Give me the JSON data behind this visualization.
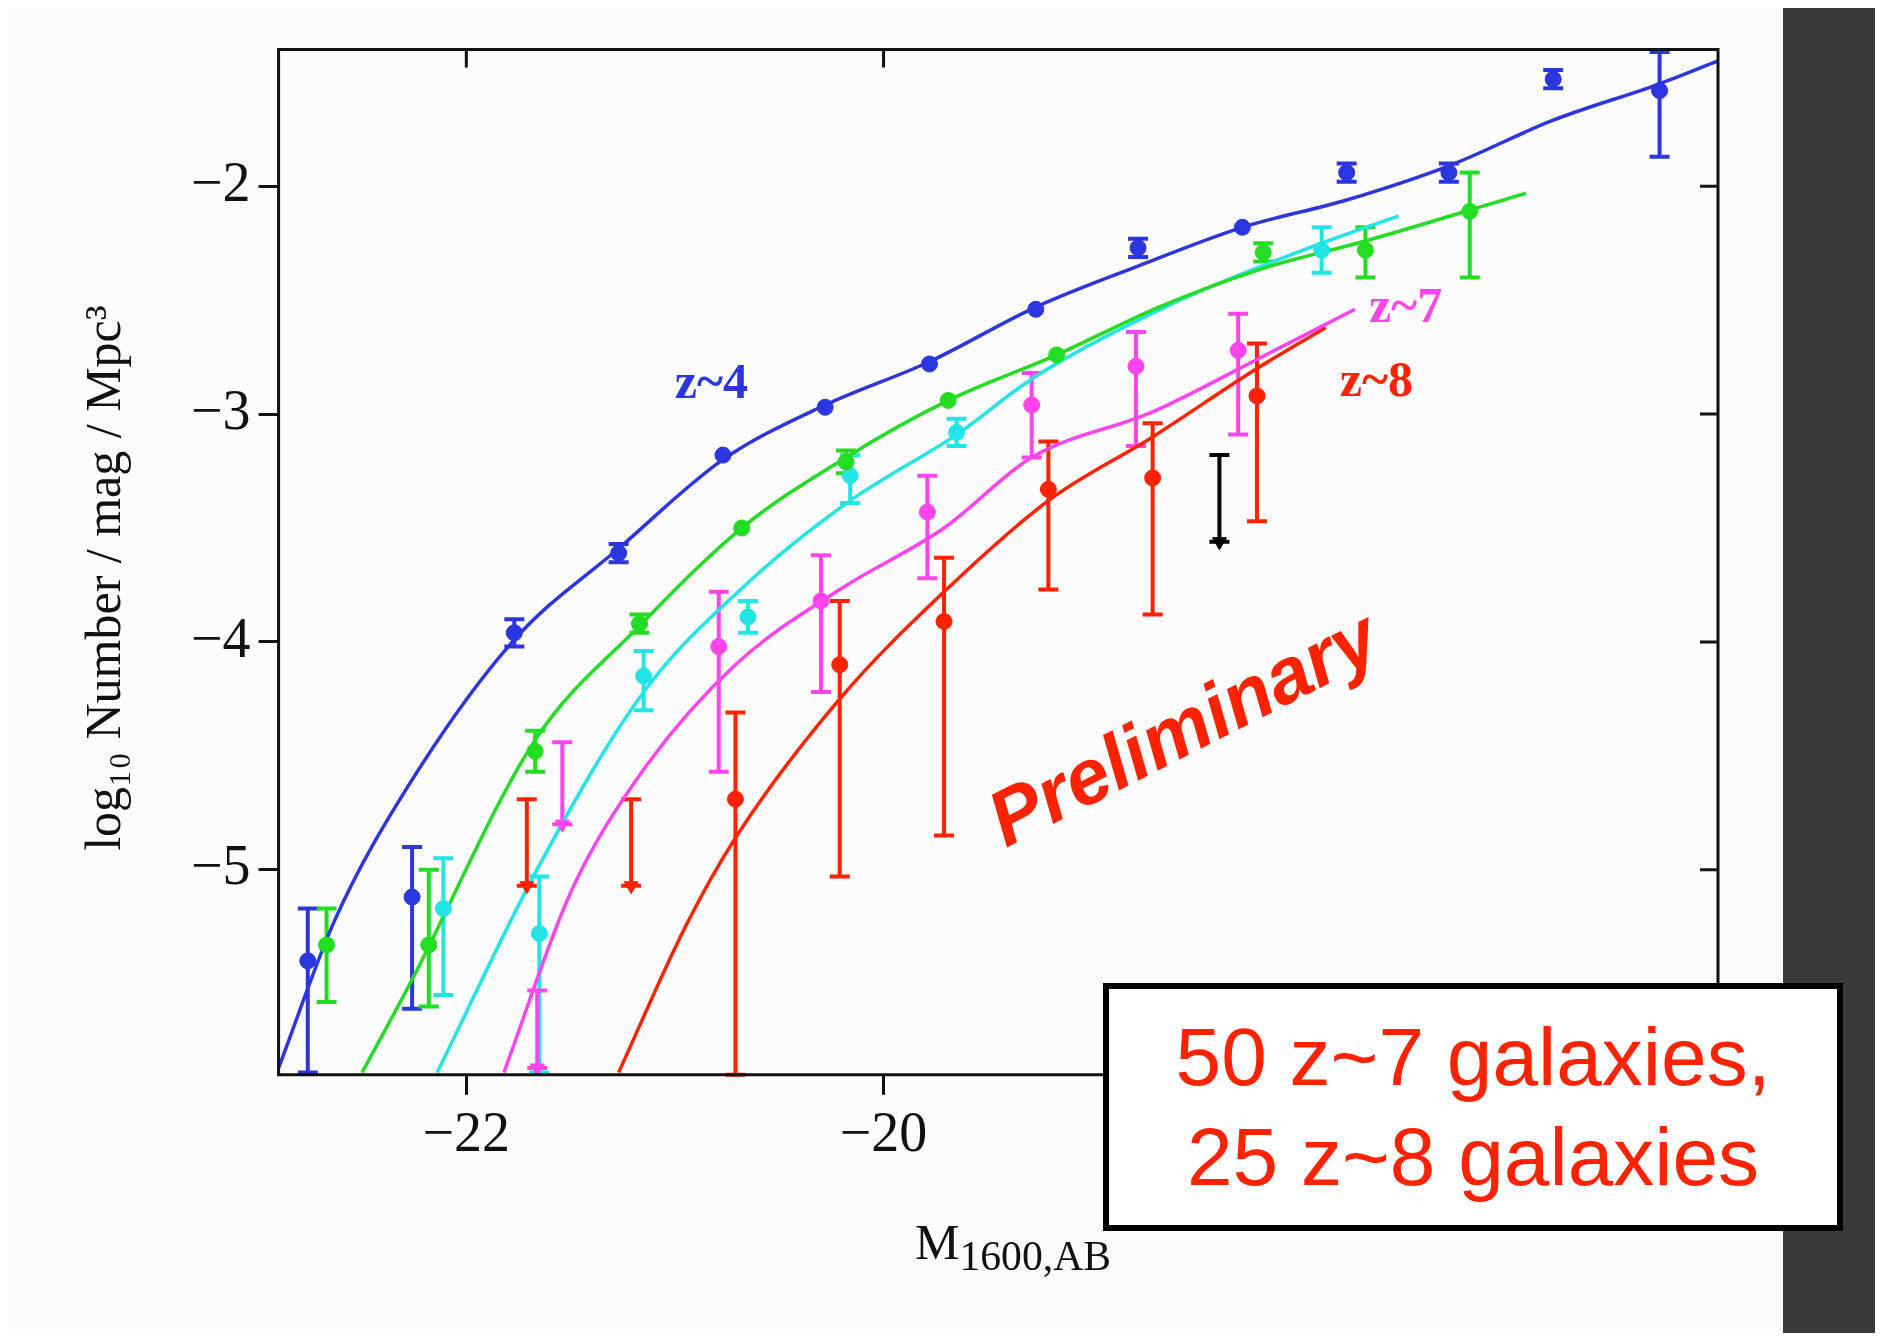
{
  "chart_data": {
    "type": "scatter",
    "xlabel": "M$_{1600,AB}$",
    "ylabel": "log₁₀ Number / mag / Mpc³",
    "xlim": [
      -22.9,
      -16.0
    ],
    "ylim": [
      -5.9,
      -1.4
    ],
    "xticks": [
      -22,
      -20
    ],
    "yticks": [
      -5,
      -4,
      -3,
      -2
    ],
    "series": [
      {
        "type": "line",
        "name": "z~4",
        "color": "#2b35e0",
        "marker": "none",
        "x": [
          -22.9,
          -22.63,
          -22.27,
          -21.77,
          -21.27,
          -20.77,
          -20.28,
          -19.78,
          -19.27,
          -18.78,
          -18.28,
          -17.78,
          -17.29,
          -16.79,
          -16.28,
          -16.0
        ],
        "values": [
          -5.87,
          -5.22,
          -4.62,
          -3.99,
          -3.59,
          -3.2,
          -2.96,
          -2.77,
          -2.53,
          -2.35,
          -2.18,
          -2.06,
          -1.91,
          -1.71,
          -1.55,
          -1.45
        ]
      },
      {
        "type": "line",
        "color": "#22dd22",
        "marker": "none",
        "x": [
          -22.5,
          -22.27,
          -21.67,
          -21.17,
          -20.68,
          -20.18,
          -19.69,
          -19.17,
          -18.68,
          -18.18,
          -17.69,
          -16.92
        ],
        "values": [
          -5.89,
          -5.5,
          -4.43,
          -3.93,
          -3.5,
          -3.19,
          -2.94,
          -2.74,
          -2.53,
          -2.36,
          -2.24,
          -2.03
        ]
      },
      {
        "type": "line",
        "color": "#22e5e5",
        "marker": "none",
        "x": [
          -22.14,
          -21.65,
          -21.15,
          -20.65,
          -20.16,
          -19.65,
          -19.28,
          -18.58,
          -17.9,
          -17.53
        ],
        "values": [
          -5.89,
          -4.98,
          -4.22,
          -3.74,
          -3.38,
          -3.09,
          -2.84,
          -2.5,
          -2.25,
          -2.13
        ]
      },
      {
        "type": "line",
        "name": "z~7",
        "color": "#ff44ee",
        "marker": "none",
        "x": [
          -21.82,
          -21.5,
          -21.15,
          -20.71,
          -20.21,
          -19.71,
          -19.29,
          -18.71,
          -18.21,
          -17.74
        ],
        "values": [
          -5.89,
          -5.1,
          -4.56,
          -4.1,
          -3.77,
          -3.5,
          -3.19,
          -2.99,
          -2.76,
          -2.54
        ]
      },
      {
        "type": "line",
        "name": "z~8",
        "color": "#ff2200",
        "marker": "none",
        "x": [
          -21.27,
          -20.95,
          -20.71,
          -20.21,
          -19.71,
          -19.21,
          -18.71,
          -18.21,
          -17.88
        ],
        "values": [
          -5.89,
          -5.25,
          -4.86,
          -4.25,
          -3.78,
          -3.38,
          -3.1,
          -2.8,
          -2.62
        ]
      },
      {
        "color": "#2b35e0",
        "marker": "circle",
        "x": [
          -22.76,
          -22.26,
          -21.77,
          -21.27,
          -20.77,
          -20.28,
          -19.78,
          -19.27,
          -18.78,
          -18.28,
          -17.78,
          -17.29,
          -16.79,
          -16.28
        ],
        "values": [
          -5.4,
          -5.12,
          -3.96,
          -3.61,
          -3.18,
          -2.97,
          -2.78,
          -2.54,
          -2.27,
          -2.18,
          -1.94,
          -1.94,
          -1.53,
          -1.58
        ],
        "errors": [
          [
            -5.89,
            -5.17
          ],
          [
            -5.61,
            -4.9
          ],
          [
            -4.02,
            -3.9
          ],
          [
            -3.65,
            -3.57
          ],
          null,
          null,
          null,
          null,
          [
            -2.31,
            -2.23
          ],
          null,
          [
            -1.98,
            -1.9
          ],
          [
            -1.98,
            -1.9
          ],
          [
            -1.57,
            -1.49
          ],
          [
            -1.87,
            -1.41
          ]
        ]
      },
      {
        "color": "#22dd22",
        "marker": "circle",
        "x": [
          -22.67,
          -22.18,
          -21.67,
          -21.17,
          -20.68,
          -20.18,
          -19.69,
          -19.17,
          -18.18,
          -17.69,
          -17.19
        ],
        "values": [
          -5.33,
          -5.33,
          -4.48,
          -3.92,
          -3.5,
          -3.21,
          -2.94,
          -2.74,
          -2.29,
          -2.28,
          -2.11
        ],
        "errors": [
          [
            -5.58,
            -5.17
          ],
          [
            -5.6,
            -5.0
          ],
          [
            -4.57,
            -4.39
          ],
          [
            -3.96,
            -3.88
          ],
          null,
          [
            -3.26,
            -3.16
          ],
          null,
          null,
          [
            -2.33,
            -2.25
          ],
          [
            -2.4,
            -2.18
          ],
          [
            -2.4,
            -1.94
          ]
        ]
      },
      {
        "color": "#22e5e5",
        "marker": "circle",
        "x": [
          -22.11,
          -21.65,
          -21.15,
          -20.65,
          -20.16,
          -19.65,
          -17.9
        ],
        "values": [
          -5.17,
          -5.28,
          -4.15,
          -3.89,
          -3.27,
          -3.08,
          -2.28
        ],
        "errors": [
          [
            -5.55,
            -4.95
          ],
          [
            -5.89,
            -5.03
          ],
          [
            -4.3,
            -4.04
          ],
          [
            -3.96,
            -3.82
          ],
          [
            -3.39,
            -3.18
          ],
          [
            -3.14,
            -3.02
          ],
          [
            -2.38,
            -2.18
          ]
        ]
      },
      {
        "color": "#ff44ee",
        "marker": "circle",
        "x": [
          -20.79,
          -20.3,
          -19.79,
          -19.29,
          -18.79,
          -18.3
        ],
        "values": [
          -4.02,
          -3.82,
          -3.43,
          -2.96,
          -2.79,
          -2.72
        ],
        "errors": [
          [
            -4.57,
            -3.78
          ],
          [
            -4.22,
            -3.62
          ],
          [
            -3.72,
            -3.27
          ],
          [
            -3.19,
            -2.82
          ],
          [
            -3.14,
            -2.64
          ],
          [
            -3.09,
            -2.56
          ]
        ]
      },
      {
        "color": "#ff2200",
        "marker": "circle",
        "x": [
          -20.71,
          -20.21,
          -19.71,
          -19.21,
          -18.71,
          -18.21
        ],
        "values": [
          -4.69,
          -4.1,
          -3.91,
          -3.33,
          -3.28,
          -2.92
        ],
        "errors": [
          [
            -5.9,
            -4.31
          ],
          [
            -5.03,
            -3.82
          ],
          [
            -4.85,
            -3.63
          ],
          [
            -3.77,
            -3.12
          ],
          [
            -3.88,
            -3.04
          ],
          [
            -3.47,
            -2.69
          ]
        ]
      },
      {
        "color": "#ff44ee",
        "marker": "triangle",
        "x": [
          -21.54,
          -21.66
        ],
        "values": [
          -4.8,
          -5.87
        ],
        "errors": [
          [
            -4.8,
            -4.44
          ],
          [
            -5.87,
            -5.53
          ]
        ]
      },
      {
        "color": "#ff2200",
        "marker": "triangle",
        "x": [
          -21.71,
          -21.21
        ],
        "values": [
          -5.07,
          -5.07
        ],
        "errors": [
          [
            -5.07,
            -4.69
          ],
          [
            -5.07,
            -4.69
          ]
        ]
      },
      {
        "color": "#000000",
        "marker": "triangle",
        "x": [
          -18.39
        ],
        "values": [
          -3.56
        ],
        "errors": [
          [
            -3.56,
            -3.18
          ]
        ]
      }
    ],
    "annotations": [
      "Preliminary",
      "50 z~7 galaxies, 25 z~8 galaxies"
    ]
  }
}
